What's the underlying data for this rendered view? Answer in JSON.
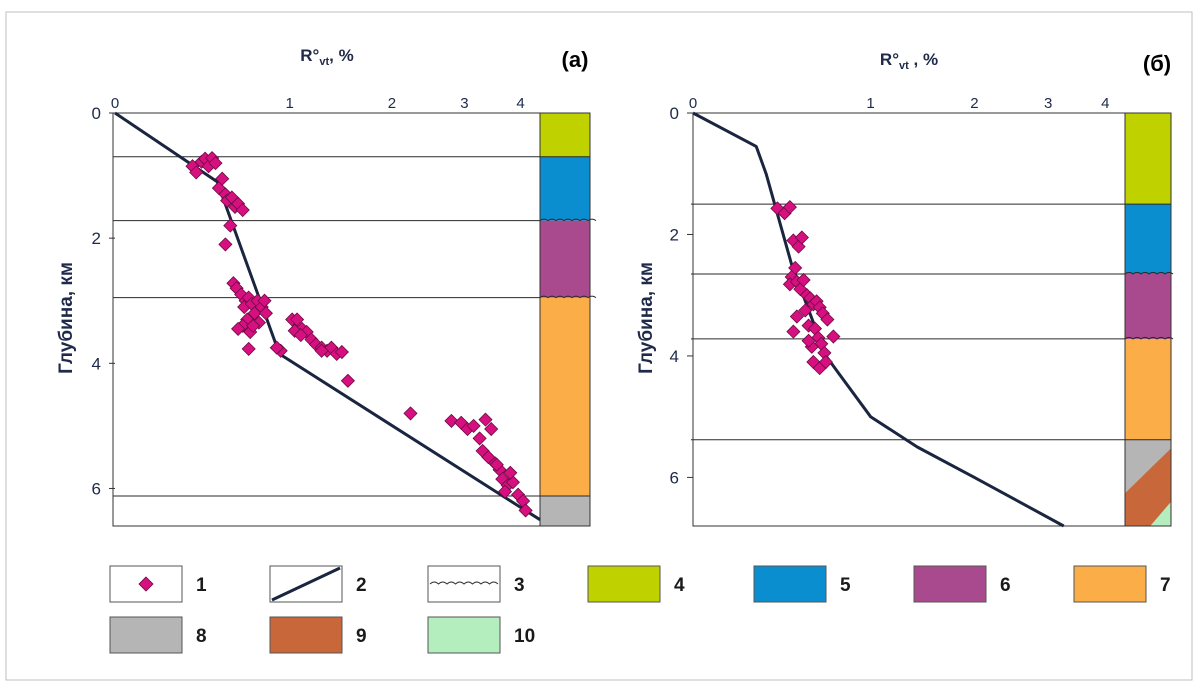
{
  "chart_data": [
    {
      "type": "scatter",
      "panel_label": "(a)",
      "xlabel": "R°vt, %",
      "xlabel_main": "R°",
      "xlabel_sub": "vt",
      "xlabel_unit": ", %",
      "ylabel": "Глубина, км",
      "x_scale": "log(1+x)",
      "x_ticks": [
        "0",
        "1",
        "2",
        "3",
        "4"
      ],
      "x_tick_values": [
        0,
        1,
        2,
        3,
        4
      ],
      "y_ticks": [
        "0",
        "2",
        "4",
        "6"
      ],
      "y_tick_values": [
        0,
        2,
        4,
        6
      ],
      "xlim": [
        0,
        4.4
      ],
      "ylim": [
        6.6,
        0
      ],
      "grid": false,
      "series": [
        {
          "role": "measured",
          "legend_ref": "1",
          "color": "#d6107f",
          "points": [
            [
              0.36,
              0.85
            ],
            [
              0.38,
              0.95
            ],
            [
              0.41,
              0.78
            ],
            [
              0.43,
              0.73
            ],
            [
              0.45,
              0.85
            ],
            [
              0.47,
              0.72
            ],
            [
              0.49,
              0.8
            ],
            [
              0.51,
              1.2
            ],
            [
              0.53,
              1.05
            ],
            [
              0.55,
              1.3
            ],
            [
              0.56,
              1.4
            ],
            [
              0.59,
              1.35
            ],
            [
              0.61,
              1.5
            ],
            [
              0.63,
              1.45
            ],
            [
              0.66,
              1.55
            ],
            [
              0.58,
              1.8
            ],
            [
              0.55,
              2.1
            ],
            [
              0.6,
              2.72
            ],
            [
              0.62,
              2.8
            ],
            [
              0.65,
              2.9
            ],
            [
              0.68,
              3.0
            ],
            [
              0.7,
              2.95
            ],
            [
              0.67,
              3.1
            ],
            [
              0.72,
              3.05
            ],
            [
              0.74,
              3.2
            ],
            [
              0.69,
              3.3
            ],
            [
              0.66,
              3.4
            ],
            [
              0.71,
              3.5
            ],
            [
              0.76,
              3.0
            ],
            [
              0.79,
              3.1
            ],
            [
              0.82,
              3.2
            ],
            [
              0.77,
              3.35
            ],
            [
              0.81,
              3.0
            ],
            [
              0.73,
              3.4
            ],
            [
              0.7,
              3.77
            ],
            [
              0.63,
              3.45
            ],
            [
              1.02,
              3.3
            ],
            [
              1.06,
              3.3
            ],
            [
              1.1,
              3.45
            ],
            [
              1.14,
              3.5
            ],
            [
              1.18,
              3.62
            ],
            [
              1.22,
              3.7
            ],
            [
              1.27,
              3.75
            ],
            [
              1.32,
              3.8
            ],
            [
              1.36,
              3.75
            ],
            [
              1.41,
              3.85
            ],
            [
              1.04,
              3.48
            ],
            [
              1.09,
              3.55
            ],
            [
              1.27,
              3.8
            ],
            [
              1.46,
              3.82
            ],
            [
              0.93,
              3.8
            ],
            [
              0.9,
              3.75
            ],
            [
              1.52,
              4.28
            ],
            [
              2.23,
              4.8
            ],
            [
              2.8,
              4.92
            ],
            [
              2.95,
              4.95
            ],
            [
              3.05,
              5.05
            ],
            [
              3.15,
              5.0
            ],
            [
              3.25,
              5.2
            ],
            [
              3.35,
              4.9
            ],
            [
              3.45,
              5.05
            ],
            [
              3.3,
              5.4
            ],
            [
              3.4,
              5.5
            ],
            [
              3.52,
              5.6
            ],
            [
              3.6,
              5.7
            ],
            [
              3.65,
              5.85
            ],
            [
              3.75,
              5.95
            ],
            [
              3.7,
              6.05
            ],
            [
              3.85,
              5.9
            ],
            [
              3.95,
              6.1
            ],
            [
              4.05,
              6.2
            ],
            [
              4.1,
              6.35
            ],
            [
              3.55,
              5.62
            ],
            [
              3.8,
              5.75
            ]
          ]
        },
        {
          "role": "calculated",
          "legend_ref": "2",
          "color": "#1a2540",
          "points": [
            [
              0,
              0
            ],
            [
              0.5,
              1.1
            ],
            [
              0.92,
              3.85
            ],
            [
              4.4,
              6.5
            ]
          ]
        }
      ],
      "horizon_depths": [
        0.7,
        1.72,
        2.95,
        6.12
      ],
      "strat_column": [
        {
          "from": 0,
          "to": 0.7,
          "legend_ref": "4"
        },
        {
          "from": 0.7,
          "to": 1.72,
          "legend_ref": "5"
        },
        {
          "from": 1.72,
          "to": 2.95,
          "legend_ref": "6"
        },
        {
          "from": 2.95,
          "to": 6.12,
          "legend_ref": "7"
        },
        {
          "from": 6.12,
          "to": 6.6,
          "legend_ref": "8"
        }
      ],
      "unconformities": [
        1.72,
        2.95
      ]
    },
    {
      "type": "scatter",
      "panel_label": "(б)",
      "xlabel": "R°vt , %",
      "xlabel_main": "R°",
      "xlabel_sub": "vt",
      "xlabel_unit": " , %",
      "ylabel": "Глубина, км",
      "x_scale": "log(1+x)",
      "x_ticks": [
        "0",
        "1",
        "2",
        "3",
        "4"
      ],
      "x_tick_values": [
        0,
        1,
        2,
        3,
        4
      ],
      "y_ticks": [
        "0",
        "2",
        "4",
        "6"
      ],
      "y_tick_values": [
        0,
        2,
        4,
        6
      ],
      "xlim": [
        0,
        4.4
      ],
      "ylim": [
        6.8,
        0
      ],
      "grid": false,
      "series": [
        {
          "role": "measured",
          "legend_ref": "1",
          "color": "#d6107f",
          "points": [
            [
              0.39,
              1.57
            ],
            [
              0.43,
              1.65
            ],
            [
              0.46,
              1.55
            ],
            [
              0.48,
              2.1
            ],
            [
              0.51,
              2.2
            ],
            [
              0.53,
              2.05
            ],
            [
              0.49,
              2.55
            ],
            [
              0.47,
              2.7
            ],
            [
              0.46,
              2.82
            ],
            [
              0.5,
              2.78
            ],
            [
              0.52,
              2.9
            ],
            [
              0.54,
              2.75
            ],
            [
              0.56,
              3.0
            ],
            [
              0.58,
              3.05
            ],
            [
              0.6,
              3.15
            ],
            [
              0.62,
              3.1
            ],
            [
              0.64,
              3.2
            ],
            [
              0.66,
              3.3
            ],
            [
              0.55,
              3.25
            ],
            [
              0.5,
              3.35
            ],
            [
              0.48,
              3.6
            ],
            [
              0.57,
              3.5
            ],
            [
              0.61,
              3.55
            ],
            [
              0.63,
              3.7
            ],
            [
              0.65,
              3.8
            ],
            [
              0.67,
              3.95
            ],
            [
              0.59,
              3.85
            ],
            [
              0.6,
              4.1
            ],
            [
              0.64,
              4.2
            ],
            [
              0.68,
              4.1
            ],
            [
              0.73,
              3.68
            ],
            [
              0.69,
              3.4
            ],
            [
              0.57,
              3.75
            ]
          ]
        },
        {
          "role": "calculated",
          "legend_ref": "2",
          "color": "#1a2540",
          "points": [
            [
              0,
              0
            ],
            [
              0.28,
              0.55
            ],
            [
              0.33,
              1.0
            ],
            [
              0.47,
              2.5
            ],
            [
              0.68,
              4.0
            ],
            [
              1.0,
              5.0
            ],
            [
              1.4,
              5.5
            ],
            [
              2.0,
              6.0
            ],
            [
              3.25,
              6.8
            ]
          ]
        }
      ],
      "horizon_depths": [
        1.5,
        2.65,
        3.72,
        5.38
      ],
      "strat_column": [
        {
          "from": 0,
          "to": 1.5,
          "legend_ref": "4"
        },
        {
          "from": 1.5,
          "to": 2.65,
          "legend_ref": "5"
        },
        {
          "from": 2.65,
          "to": 3.72,
          "legend_ref": "6"
        },
        {
          "from": 3.72,
          "to": 5.38,
          "legend_ref": "7"
        },
        {
          "from": 5.38,
          "to": 6.8,
          "legend_ref": "8-9-10 diagonal"
        }
      ],
      "unconformities": [
        2.65,
        3.72
      ]
    }
  ],
  "legend": {
    "items": [
      {
        "label": "1",
        "kind": "marker",
        "color": "#d6107f"
      },
      {
        "label": "2",
        "kind": "line",
        "color": "#1a2540"
      },
      {
        "label": "3",
        "kind": "wavy"
      },
      {
        "label": "4",
        "kind": "fill",
        "color": "#bfd200"
      },
      {
        "label": "5",
        "kind": "fill",
        "color": "#0a8ecf"
      },
      {
        "label": "6",
        "kind": "fill",
        "color": "#a94a8f"
      },
      {
        "label": "7",
        "kind": "fill",
        "color": "#fbae48"
      },
      {
        "label": "8",
        "kind": "fill",
        "color": "#b5b5b5"
      },
      {
        "label": "9",
        "kind": "fill",
        "color": "#c8683a"
      },
      {
        "label": "10",
        "kind": "fill",
        "color": "#b4eebe"
      }
    ]
  },
  "colors": {
    "marker_fill": "#d6107f",
    "marker_stroke": "#6b0a44",
    "curve": "#1a2540",
    "horizon": "#2a2a2a",
    "axis_text": "#1f2a4a",
    "unit_4": "#bfd200",
    "unit_5": "#0a8ecf",
    "unit_6": "#a94a8f",
    "unit_7": "#fbae48",
    "unit_8": "#b5b5b5",
    "unit_9": "#c8683a",
    "unit_10": "#b4eebe"
  }
}
